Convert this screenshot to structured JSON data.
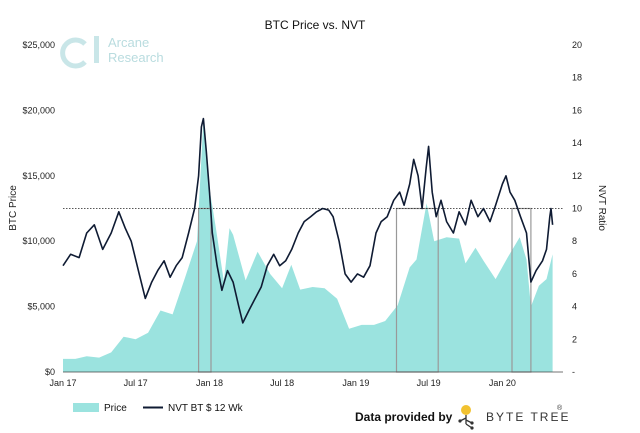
{
  "chart_data": {
    "type": "area",
    "title": "BTC Price vs. NVT",
    "ylabel": "BTC Price",
    "y2label": "NVT Ratio",
    "ylim": [
      0,
      25000
    ],
    "y2lim": [
      0,
      20
    ],
    "x_ticks": [
      "Jan 17",
      "Jul 17",
      "Jan 18",
      "Jul 18",
      "Jan 19",
      "Jul 19",
      "Jan 20"
    ],
    "y_ticks": [
      "$0",
      "$5,000",
      "$10,000",
      "$15,000",
      "$20,000",
      "$25,000"
    ],
    "y2_ticks": [
      "-",
      "2",
      "4",
      "6",
      "8",
      "10",
      "12",
      "14",
      "16",
      "18",
      "20"
    ],
    "reference_line": 10,
    "highlight_regions": [
      [
        "2017-12-05",
        "2018-01-05"
      ],
      [
        "2019-04-12",
        "2019-07-25"
      ],
      [
        "2020-01-25",
        "2020-03-12"
      ]
    ],
    "series": [
      {
        "name": "Price",
        "kind": "area",
        "axis": "left",
        "color": "#9be3df",
        "points": [
          [
            "2017-01-01",
            1000
          ],
          [
            "2017-02-01",
            1000
          ],
          [
            "2017-03-01",
            1200
          ],
          [
            "2017-04-01",
            1100
          ],
          [
            "2017-05-01",
            1500
          ],
          [
            "2017-06-01",
            2700
          ],
          [
            "2017-07-01",
            2500
          ],
          [
            "2017-08-01",
            3000
          ],
          [
            "2017-09-01",
            4700
          ],
          [
            "2017-10-01",
            4400
          ],
          [
            "2017-11-01",
            7200
          ],
          [
            "2017-12-01",
            10000
          ],
          [
            "2017-12-17",
            19300
          ],
          [
            "2018-01-01",
            14000
          ],
          [
            "2018-01-17",
            11000
          ],
          [
            "2018-02-06",
            6900
          ],
          [
            "2018-02-20",
            11000
          ],
          [
            "2018-03-01",
            10500
          ],
          [
            "2018-04-01",
            7000
          ],
          [
            "2018-05-01",
            9200
          ],
          [
            "2018-06-01",
            7500
          ],
          [
            "2018-07-01",
            6400
          ],
          [
            "2018-07-24",
            8200
          ],
          [
            "2018-08-15",
            6300
          ],
          [
            "2018-09-15",
            6500
          ],
          [
            "2018-10-15",
            6400
          ],
          [
            "2018-11-15",
            5600
          ],
          [
            "2018-12-15",
            3300
          ],
          [
            "2019-01-15",
            3600
          ],
          [
            "2019-02-15",
            3600
          ],
          [
            "2019-03-15",
            3900
          ],
          [
            "2019-04-15",
            5100
          ],
          [
            "2019-05-15",
            8000
          ],
          [
            "2019-06-01",
            8600
          ],
          [
            "2019-06-26",
            12900
          ],
          [
            "2019-07-15",
            10000
          ],
          [
            "2019-08-15",
            10300
          ],
          [
            "2019-09-15",
            10200
          ],
          [
            "2019-10-01",
            8300
          ],
          [
            "2019-10-26",
            9500
          ],
          [
            "2019-11-15",
            8500
          ],
          [
            "2019-12-15",
            7100
          ],
          [
            "2020-01-15",
            8800
          ],
          [
            "2020-02-13",
            10300
          ],
          [
            "2020-03-01",
            8600
          ],
          [
            "2020-03-12",
            5000
          ],
          [
            "2020-04-01",
            6600
          ],
          [
            "2020-04-20",
            7100
          ],
          [
            "2020-05-05",
            9000
          ]
        ]
      },
      {
        "name": "NVT BT $ 12 Wk",
        "kind": "line",
        "axis": "right",
        "color": "#0f1b33",
        "points": [
          [
            "2017-01-01",
            6.5
          ],
          [
            "2017-01-20",
            7.2
          ],
          [
            "2017-02-10",
            7.0
          ],
          [
            "2017-03-01",
            8.5
          ],
          [
            "2017-03-20",
            9.0
          ],
          [
            "2017-04-10",
            7.5
          ],
          [
            "2017-05-01",
            8.5
          ],
          [
            "2017-05-20",
            9.8
          ],
          [
            "2017-06-05",
            8.8
          ],
          [
            "2017-06-20",
            8.0
          ],
          [
            "2017-07-10",
            6.0
          ],
          [
            "2017-07-25",
            4.5
          ],
          [
            "2017-08-10",
            5.5
          ],
          [
            "2017-08-25",
            6.2
          ],
          [
            "2017-09-10",
            6.8
          ],
          [
            "2017-09-25",
            5.8
          ],
          [
            "2017-10-10",
            6.5
          ],
          [
            "2017-10-25",
            7.0
          ],
          [
            "2017-11-10",
            8.5
          ],
          [
            "2017-11-25",
            10.0
          ],
          [
            "2017-12-05",
            12.0
          ],
          [
            "2017-12-12",
            15.0
          ],
          [
            "2017-12-17",
            15.5
          ],
          [
            "2017-12-24",
            13.5
          ],
          [
            "2018-01-01",
            11.0
          ],
          [
            "2018-01-08",
            8.5
          ],
          [
            "2018-01-20",
            6.5
          ],
          [
            "2018-02-01",
            5.0
          ],
          [
            "2018-02-15",
            6.2
          ],
          [
            "2018-03-01",
            5.5
          ],
          [
            "2018-03-15",
            4.0
          ],
          [
            "2018-03-25",
            3.0
          ],
          [
            "2018-04-10",
            3.8
          ],
          [
            "2018-04-25",
            4.5
          ],
          [
            "2018-05-10",
            5.2
          ],
          [
            "2018-05-25",
            6.5
          ],
          [
            "2018-06-10",
            7.2
          ],
          [
            "2018-06-25",
            6.5
          ],
          [
            "2018-07-10",
            6.8
          ],
          [
            "2018-07-25",
            7.5
          ],
          [
            "2018-08-10",
            8.5
          ],
          [
            "2018-08-25",
            9.2
          ],
          [
            "2018-09-10",
            9.5
          ],
          [
            "2018-09-25",
            9.8
          ],
          [
            "2018-10-10",
            10.0
          ],
          [
            "2018-10-25",
            9.9
          ],
          [
            "2018-11-05",
            9.5
          ],
          [
            "2018-11-20",
            8.0
          ],
          [
            "2018-12-05",
            6.0
          ],
          [
            "2018-12-20",
            5.5
          ],
          [
            "2019-01-05",
            6.0
          ],
          [
            "2019-01-20",
            5.8
          ],
          [
            "2019-02-05",
            6.5
          ],
          [
            "2019-02-20",
            8.5
          ],
          [
            "2019-03-05",
            9.2
          ],
          [
            "2019-03-20",
            9.5
          ],
          [
            "2019-04-05",
            10.5
          ],
          [
            "2019-04-20",
            11.0
          ],
          [
            "2019-05-01",
            10.2
          ],
          [
            "2019-05-15",
            11.5
          ],
          [
            "2019-05-25",
            13.0
          ],
          [
            "2019-06-05",
            12.0
          ],
          [
            "2019-06-15",
            10.0
          ],
          [
            "2019-06-25",
            12.5
          ],
          [
            "2019-07-01",
            13.8
          ],
          [
            "2019-07-10",
            11.0
          ],
          [
            "2019-07-20",
            9.5
          ],
          [
            "2019-08-01",
            10.5
          ],
          [
            "2019-08-15",
            9.2
          ],
          [
            "2019-09-01",
            8.5
          ],
          [
            "2019-09-15",
            9.8
          ],
          [
            "2019-10-01",
            9.0
          ],
          [
            "2019-10-15",
            10.5
          ],
          [
            "2019-11-01",
            9.5
          ],
          [
            "2019-11-15",
            10.0
          ],
          [
            "2019-12-01",
            9.2
          ],
          [
            "2019-12-15",
            10.2
          ],
          [
            "2020-01-01",
            11.5
          ],
          [
            "2020-01-10",
            12.0
          ],
          [
            "2020-01-20",
            11.0
          ],
          [
            "2020-02-01",
            10.5
          ],
          [
            "2020-02-15",
            9.5
          ],
          [
            "2020-03-01",
            8.5
          ],
          [
            "2020-03-12",
            5.5
          ],
          [
            "2020-03-25",
            6.2
          ],
          [
            "2020-04-10",
            6.8
          ],
          [
            "2020-04-20",
            7.5
          ],
          [
            "2020-04-28",
            9.5
          ],
          [
            "2020-05-01",
            10.0
          ],
          [
            "2020-05-05",
            9.0
          ]
        ]
      }
    ],
    "legend": {
      "position": "bottom-left",
      "items": [
        "Price",
        "NVT BT $ 12 Wk"
      ]
    },
    "grid": false
  },
  "watermark": {
    "line1": "Arcane",
    "line2": "Research"
  },
  "footer": {
    "provided_by": "Data provided by",
    "brand": "BYTE TREE",
    "reg": "®"
  },
  "colors": {
    "price_fill": "#9be3df",
    "nvt_line": "#0f1b33",
    "highlight": "#999999"
  }
}
